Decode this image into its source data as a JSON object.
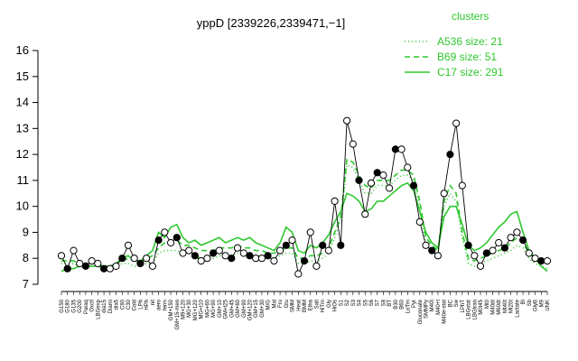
{
  "chart_data": {
    "type": "line",
    "title": "yppD [2339226,2339471,−1]",
    "ylim": [
      7,
      16
    ],
    "yticks": [
      7,
      8,
      9,
      10,
      11,
      12,
      13,
      14,
      15,
      16
    ],
    "xtick_labels": [
      "G150",
      "G180",
      "G135",
      "G200",
      "Paraq",
      "Oxctl",
      "LBGexp",
      "dia15",
      "Diami",
      "dia5",
      "C90",
      "C30",
      "Cold",
      "LPh",
      "HPh",
      "nit",
      "aero",
      "ferm",
      "GM+150",
      "GM+15-men",
      "M9+120",
      "MG+30",
      "MG+120",
      "MG+t10",
      "MG+60",
      "MG+90",
      "GM+10",
      "GM+t25",
      "GM+45",
      "GM+60",
      "GM+90",
      "GM+120",
      "GM+15",
      "GM+30",
      "M/G",
      "Mal",
      "Fru",
      "Glu",
      "SMM",
      "Heat",
      "BMM",
      "Etha",
      "Salt",
      "HiTm",
      "Gly",
      "HiOs",
      "S1",
      "S2",
      "S3",
      "S4",
      "S5",
      "S6",
      "S7",
      "S8",
      "BT",
      "B30",
      "B60",
      "LoTm",
      "Pyr",
      "Gluconate",
      "SMMPy",
      "M40t",
      "M40+t",
      "M40e-stat",
      "BC",
      "Sw",
      "LPhT",
      "LBGstat",
      "LBGtran",
      "M0t45",
      "Mt0",
      "M40dt",
      "M60dt",
      "Mt40t",
      "Mt20t",
      "Lactate",
      "Bl",
      "Sb",
      "GlyB",
      "M9",
      "UNK"
    ],
    "series": [
      {
        "name": "A536 size: 21",
        "style": "dotted",
        "color": "#2ec82e",
        "values": [
          7.8,
          7.8,
          7.8,
          7.7,
          7.7,
          7.7,
          7.7,
          7.6,
          7.6,
          7.7,
          7.8,
          7.8,
          7.7,
          7.7,
          7.8,
          7.8,
          8.2,
          8.3,
          8.3,
          8.3,
          8.2,
          8.2,
          8.1,
          8.0,
          8.0,
          8.0,
          8.1,
          8.1,
          8.1,
          8.2,
          8.2,
          8.2,
          8.1,
          8.1,
          8.0,
          8.0,
          8.1,
          8.2,
          8.2,
          7.8,
          7.8,
          7.9,
          7.9,
          8.0,
          8.2,
          8.8,
          9.5,
          11.6,
          11.5,
          11.0,
          10.5,
          10.5,
          10.8,
          10.8,
          10.8,
          11.0,
          11.2,
          11.2,
          11.0,
          10.0,
          8.5,
          8.3,
          8.1,
          10.0,
          10.5,
          10.2,
          8.8,
          7.8,
          7.7,
          7.8,
          7.9,
          8.0,
          8.1,
          8.2,
          8.3,
          8.5,
          8.4,
          8.0,
          7.8,
          7.7,
          7.6
        ]
      },
      {
        "name": "B69 size: 51",
        "style": "dashed",
        "color": "#2ec82e",
        "values": [
          7.9,
          7.9,
          7.9,
          7.8,
          7.8,
          7.8,
          7.8,
          7.7,
          7.7,
          7.8,
          7.9,
          8.0,
          7.9,
          7.9,
          8.0,
          8.1,
          8.4,
          8.6,
          8.6,
          8.7,
          8.5,
          8.5,
          8.4,
          8.3,
          8.3,
          8.3,
          8.4,
          8.4,
          8.4,
          8.5,
          8.4,
          8.4,
          8.3,
          8.3,
          8.2,
          8.2,
          8.3,
          8.4,
          8.4,
          8.0,
          8.0,
          8.1,
          8.1,
          8.2,
          8.4,
          9.0,
          9.6,
          11.8,
          11.7,
          11.2,
          10.8,
          10.7,
          11.0,
          11.0,
          11.0,
          11.2,
          11.4,
          11.4,
          11.2,
          10.2,
          8.8,
          8.5,
          8.3,
          10.2,
          10.8,
          10.5,
          9.0,
          8.0,
          7.9,
          8.0,
          8.1,
          8.2,
          8.3,
          8.4,
          8.6,
          8.8,
          8.6,
          8.2,
          8.0,
          7.9,
          7.8
        ]
      },
      {
        "name": "C17 size: 291",
        "style": "solid",
        "color": "#2ec82e",
        "values": [
          7.5,
          7.6,
          7.6,
          7.7,
          7.7,
          7.7,
          7.7,
          7.6,
          7.7,
          7.8,
          8.0,
          8.1,
          7.9,
          7.9,
          8.1,
          8.3,
          9.0,
          8.8,
          9.2,
          9.3,
          8.8,
          8.6,
          8.7,
          8.5,
          8.6,
          8.7,
          8.8,
          8.6,
          8.7,
          8.8,
          8.7,
          8.8,
          8.6,
          8.5,
          8.4,
          8.3,
          8.6,
          9.2,
          9.0,
          8.3,
          8.2,
          8.5,
          8.4,
          8.6,
          8.9,
          9.4,
          9.8,
          10.5,
          10.4,
          10.2,
          9.8,
          9.9,
          10.2,
          10.2,
          10.4,
          10.6,
          10.8,
          10.9,
          10.6,
          9.8,
          9.0,
          8.6,
          8.4,
          9.6,
          10.0,
          10.0,
          9.3,
          8.5,
          8.3,
          8.4,
          8.6,
          8.9,
          9.2,
          9.4,
          9.7,
          9.8,
          9.0,
          8.3,
          8.0,
          7.7,
          7.5
        ]
      },
      {
        "name": "gene",
        "style": "points",
        "color": "#000000",
        "values": [
          8.1,
          7.6,
          8.3,
          7.8,
          7.7,
          7.9,
          7.8,
          7.6,
          7.6,
          7.7,
          8.0,
          8.5,
          8.0,
          7.8,
          8.0,
          7.7,
          8.7,
          9.0,
          8.6,
          8.8,
          8.2,
          8.3,
          8.1,
          7.9,
          8.0,
          8.2,
          8.3,
          8.1,
          8.0,
          8.4,
          8.2,
          8.1,
          8.0,
          8.0,
          8.1,
          7.9,
          8.3,
          8.5,
          8.7,
          7.4,
          7.9,
          9.0,
          7.7,
          8.5,
          8.3,
          10.2,
          8.5,
          13.3,
          12.4,
          11.0,
          9.7,
          10.9,
          11.3,
          11.2,
          10.7,
          12.2,
          12.2,
          11.5,
          10.8,
          9.4,
          8.5,
          8.3,
          8.1,
          10.5,
          12.0,
          13.2,
          10.8,
          8.5,
          8.1,
          7.7,
          8.2,
          8.3,
          8.6,
          8.4,
          8.8,
          9.0,
          8.7,
          8.2,
          8.0,
          7.9,
          7.9
        ]
      }
    ],
    "legend": {
      "title": "clusters",
      "placement": "top-right",
      "entries": [
        "A536 size: 21",
        "B69 size: 51",
        "C17 size: 291"
      ]
    },
    "xlabel": "",
    "ylabel": "",
    "grid": false
  }
}
